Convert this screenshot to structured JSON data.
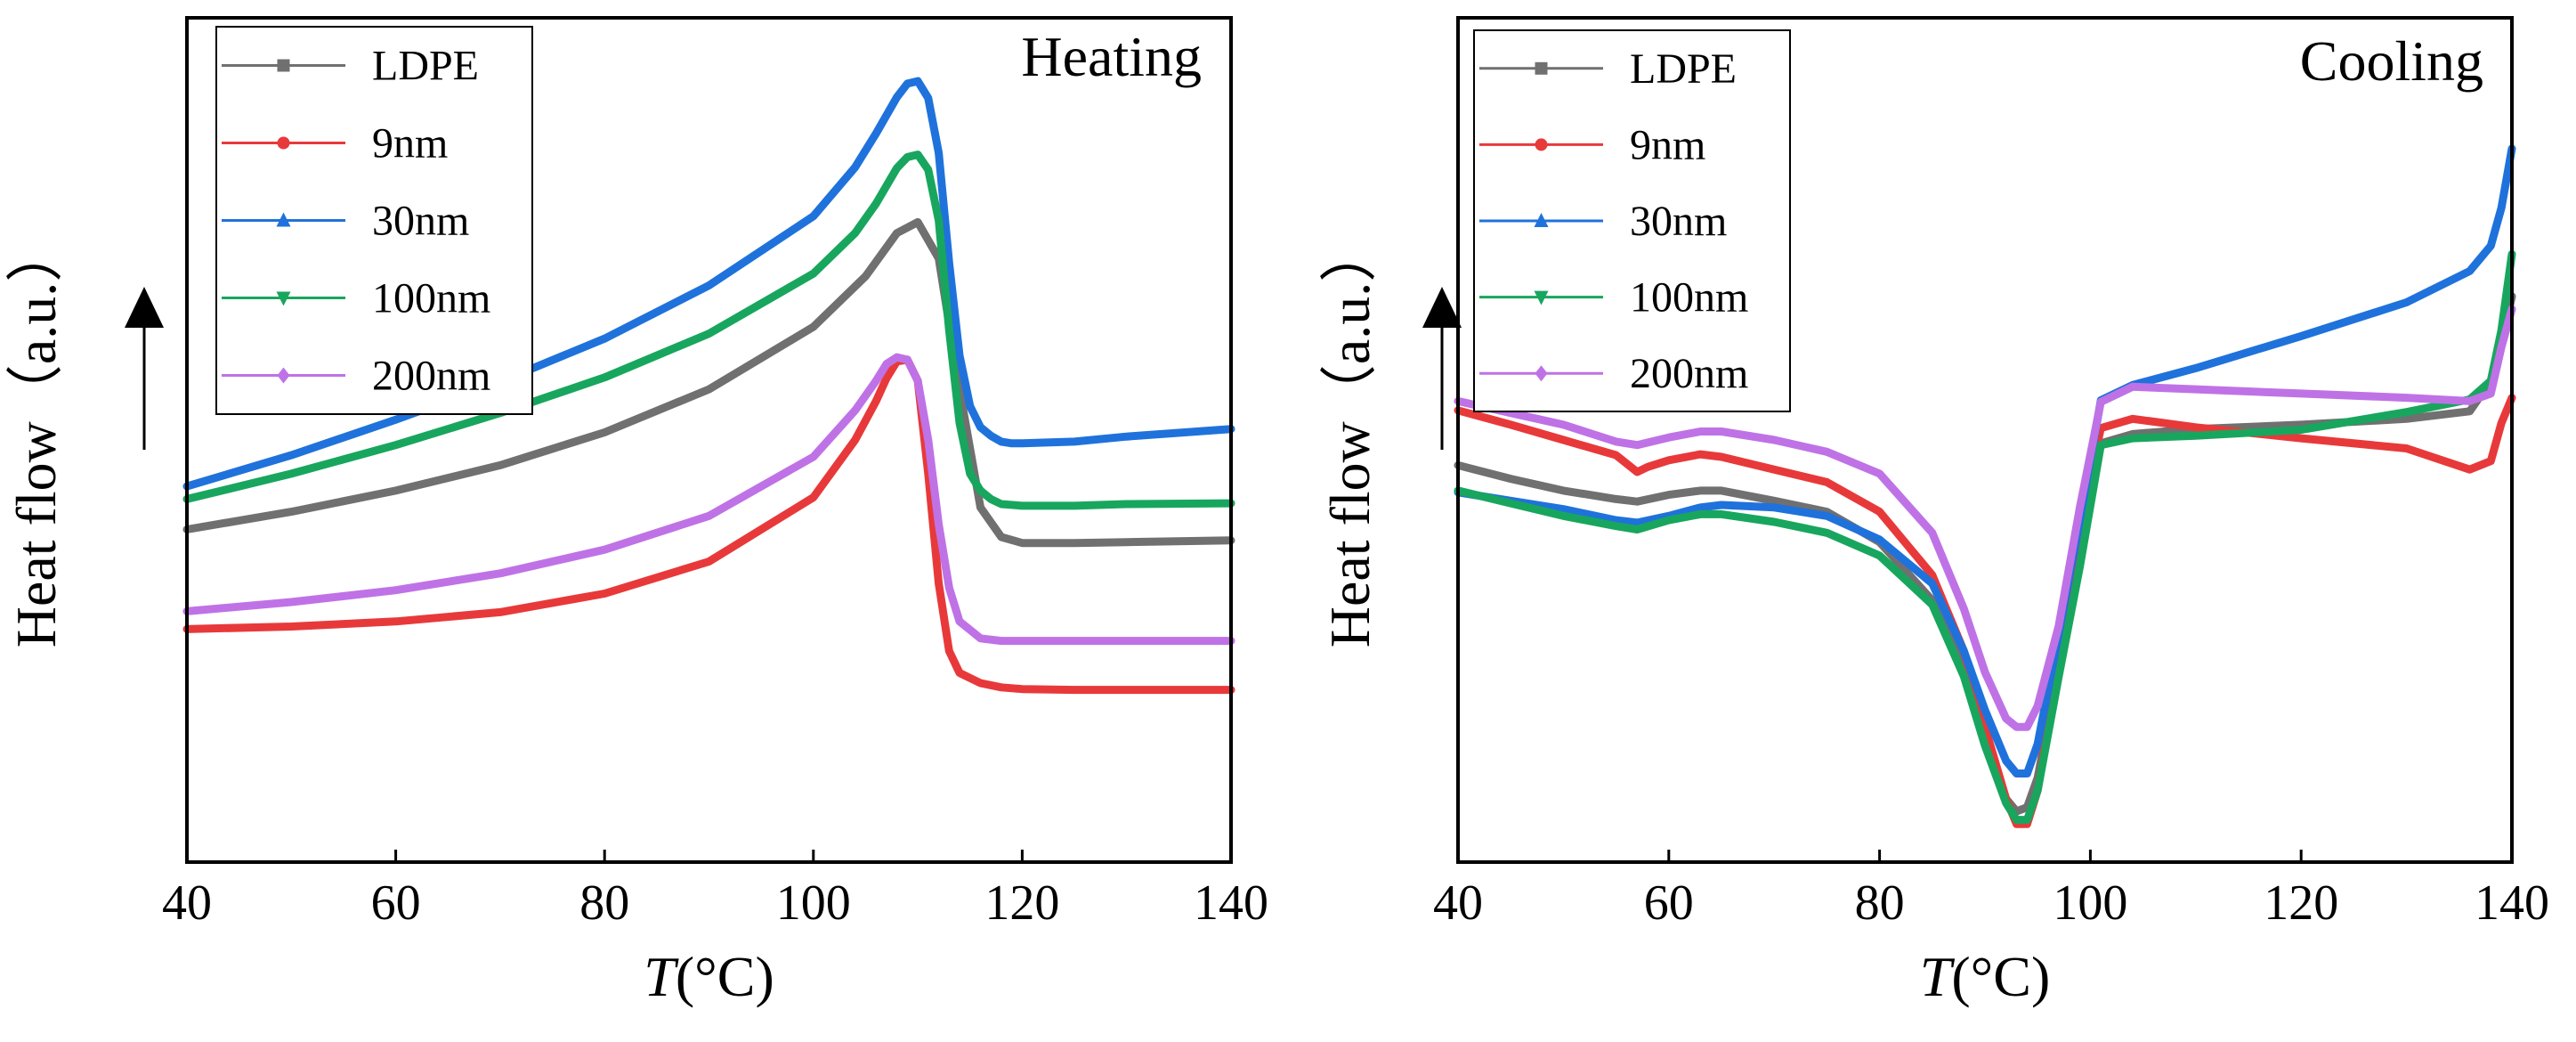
{
  "chart_data": [
    {
      "type": "line",
      "title": "Heating",
      "xlabel_italic": "T",
      "xlabel_unit": "(°C)",
      "ylabel": "Heat flow（a.u.）",
      "xlim": [
        40,
        140
      ],
      "ylim": [
        0,
        100
      ],
      "xticks": [
        "40",
        "60",
        "80",
        "100",
        "120",
        "140"
      ],
      "legend_position": "top-left",
      "series": [
        {
          "name": "LDPE",
          "color": "#707070",
          "x": [
            40,
            50,
            60,
            70,
            80,
            90,
            100,
            105,
            108,
            110,
            112,
            114,
            116,
            118,
            120,
            125,
            130,
            140
          ],
          "y": [
            39.4,
            41.5,
            44,
            47,
            50.9,
            56,
            63.4,
            69.4,
            74.5,
            75.8,
            71.5,
            56,
            42,
            38.5,
            37.8,
            37.8,
            37.9,
            38.1
          ]
        },
        {
          "name": "9nm",
          "color": "#e8393a",
          "x": [
            40,
            50,
            60,
            70,
            80,
            90,
            100,
            104,
            106,
            107,
            108,
            109,
            110,
            111,
            112,
            113,
            114,
            116,
            118,
            120,
            125,
            130,
            140
          ],
          "y": [
            27.6,
            27.9,
            28.5,
            29.6,
            31.8,
            35.6,
            43.2,
            50,
            54.6,
            57.3,
            59.3,
            59.5,
            57,
            46,
            33,
            25,
            22.4,
            21.2,
            20.7,
            20.5,
            20.4,
            20.4,
            20.4
          ]
        },
        {
          "name": "30nm",
          "color": "#1f72db",
          "x": [
            40,
            50,
            60,
            70,
            80,
            90,
            100,
            104,
            106,
            108,
            109,
            110,
            111,
            112,
            113,
            114,
            115,
            116,
            117,
            118,
            119,
            120,
            125,
            130,
            140
          ],
          "y": [
            44.5,
            48.2,
            52.4,
            56.9,
            62,
            68.3,
            76.5,
            82.3,
            86.3,
            90.6,
            92.2,
            92.5,
            90.5,
            84,
            71,
            60,
            54,
            51.5,
            50.5,
            49.8,
            49.6,
            49.6,
            49.8,
            50.4,
            51.3
          ]
        },
        {
          "name": "100nm",
          "color": "#18a65e",
          "x": [
            40,
            50,
            60,
            70,
            80,
            90,
            100,
            104,
            106,
            108,
            109,
            110,
            111,
            112,
            113,
            114,
            115,
            116,
            117,
            118,
            120,
            125,
            130,
            140
          ],
          "y": [
            43,
            46,
            49.4,
            53.2,
            57.4,
            62.6,
            69.7,
            74.5,
            78,
            82.2,
            83.5,
            83.8,
            82,
            76,
            63,
            52,
            46,
            44,
            43,
            42.4,
            42.2,
            42.2,
            42.4,
            42.5
          ]
        },
        {
          "name": "200nm",
          "color": "#bf72e6",
          "x": [
            40,
            50,
            60,
            70,
            80,
            90,
            100,
            104,
            106,
            107,
            108,
            109,
            110,
            111,
            112,
            113,
            114,
            115,
            116,
            118,
            120,
            125,
            130,
            140
          ],
          "y": [
            29.7,
            30.8,
            32.2,
            34.2,
            37,
            41,
            48,
            53.5,
            57,
            59,
            59.8,
            59.5,
            57,
            50,
            40,
            32.5,
            28.5,
            27.5,
            26.5,
            26.2,
            26.2,
            26.2,
            26.2,
            26.2
          ]
        }
      ]
    },
    {
      "type": "line",
      "title": "Cooling",
      "xlabel_italic": "T",
      "xlabel_unit": "(°C)",
      "ylabel": "Heat flow（a.u.）",
      "xlim": [
        40,
        140
      ],
      "ylim": [
        0,
        100
      ],
      "xticks": [
        "40",
        "60",
        "80",
        "100",
        "120",
        "140"
      ],
      "legend_position": "top-left",
      "series": [
        {
          "name": "LDPE",
          "color": "#707070",
          "x": [
            40,
            45,
            50,
            55,
            57,
            60,
            63,
            65,
            70,
            75,
            80,
            85,
            88,
            90,
            92,
            93,
            94,
            95,
            97,
            99,
            101,
            104,
            110,
            120,
            130,
            136,
            138,
            139,
            140
          ],
          "y": [
            47,
            45.4,
            44,
            43,
            42.7,
            43.5,
            44,
            44,
            42.8,
            41.5,
            37.9,
            31,
            23,
            14.7,
            7.5,
            6,
            6.5,
            10,
            23,
            37.5,
            49.6,
            50.7,
            51.3,
            51.8,
            52.5,
            53.4,
            57,
            61.5,
            67
          ]
        },
        {
          "name": "9nm",
          "color": "#e8393a",
          "x": [
            40,
            45,
            50,
            55,
            57,
            58,
            60,
            63,
            65,
            70,
            75,
            80,
            85,
            88,
            90,
            92,
            93,
            94,
            95,
            97,
            99,
            101,
            104,
            110,
            120,
            130,
            136,
            138,
            139,
            140
          ],
          "y": [
            53.5,
            51.8,
            50,
            48.2,
            46.2,
            46.8,
            47.6,
            48.3,
            48,
            46.5,
            45,
            41.5,
            34,
            25,
            16,
            7.5,
            4.5,
            4.5,
            8.5,
            24,
            40,
            51.4,
            52.5,
            51.5,
            50.2,
            49,
            46.5,
            47.5,
            52,
            55
          ]
        },
        {
          "name": "30nm",
          "color": "#1f72db",
          "x": [
            40,
            45,
            50,
            55,
            57,
            60,
            63,
            65,
            70,
            75,
            80,
            85,
            88,
            90,
            92,
            93,
            94,
            95,
            97,
            99,
            101,
            104,
            110,
            120,
            130,
            136,
            138,
            139,
            140
          ],
          "y": [
            43.8,
            42.8,
            41.8,
            40.5,
            40.2,
            41,
            42,
            42.3,
            42,
            41,
            38.2,
            33,
            25,
            18,
            12,
            10.5,
            10.5,
            14,
            27,
            40.5,
            54.7,
            56.5,
            58.5,
            62.3,
            66.3,
            70,
            73,
            77.5,
            84.5
          ]
        },
        {
          "name": "100nm",
          "color": "#18a65e",
          "x": [
            40,
            45,
            50,
            55,
            57,
            60,
            63,
            65,
            70,
            75,
            80,
            85,
            88,
            90,
            92,
            93,
            94,
            95,
            97,
            99,
            101,
            104,
            110,
            120,
            130,
            136,
            138,
            139,
            140
          ],
          "y": [
            44,
            42.5,
            41,
            39.8,
            39.4,
            40.5,
            41.2,
            41.2,
            40.3,
            39,
            36.3,
            30.5,
            22,
            13.8,
            7,
            5,
            5,
            8.5,
            22,
            35,
            49.4,
            50.2,
            50.5,
            51.2,
            53.3,
            54.8,
            57,
            63,
            72
          ]
        },
        {
          "name": "200nm",
          "color": "#bf72e6",
          "x": [
            40,
            45,
            50,
            55,
            57,
            60,
            63,
            65,
            70,
            75,
            80,
            85,
            88,
            90,
            92,
            93,
            94,
            95,
            97,
            99,
            101,
            104,
            110,
            120,
            130,
            136,
            138,
            139,
            140
          ],
          "y": [
            54.6,
            53.2,
            51.8,
            49.8,
            49.4,
            50.3,
            51,
            51,
            50,
            48.6,
            46,
            39,
            30,
            22.5,
            17,
            16,
            16,
            18.5,
            28,
            42,
            54.5,
            56.3,
            56,
            55.5,
            55,
            54.6,
            55.5,
            61,
            65.5
          ]
        }
      ]
    }
  ]
}
